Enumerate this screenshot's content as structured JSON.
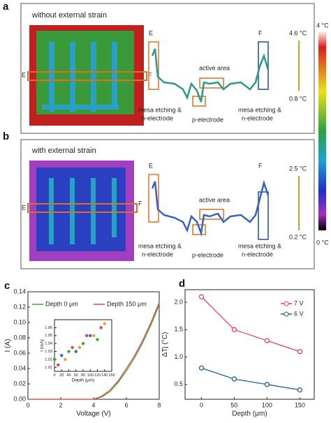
{
  "panels": [
    {
      "label": "a",
      "title": "without external strain",
      "image_e": "E",
      "image_f": "F",
      "profile_e": "E",
      "profile_f": "F",
      "active": "active area",
      "mesa_left": [
        "mesa etching &",
        "n-electrode"
      ],
      "p_electrode": "p-electrode",
      "mesa_right": [
        "mesa etching &",
        "n-electrode"
      ],
      "scale_max": "4.6 °C",
      "scale_min": "0.8 °C"
    },
    {
      "label": "b",
      "title": "with external strain",
      "image_e": "E",
      "image_f": "F",
      "profile_e": "E",
      "profile_f": "F",
      "active": "active area",
      "mesa_left": [
        "mesa etching &",
        "n-electrode"
      ],
      "p_electrode": "p-electrode",
      "mesa_right": [
        "mesa etching &",
        "n-electrode"
      ],
      "scale_max": "2.5 °C",
      "scale_min": "0.2 °C"
    }
  ],
  "colorbar": {
    "max": "4 °C",
    "min": "0 °C"
  },
  "chart_data": [
    {
      "type": "line",
      "label": "c",
      "x_label": "Voltage (V)",
      "y_label": "I (A)",
      "x": [
        0,
        1,
        2,
        3,
        4,
        4.5,
        5,
        5.5,
        6,
        6.5,
        7,
        7.5,
        8
      ],
      "series": [
        {
          "name": "Depth 0 μm",
          "color": "#3aa935",
          "values": [
            0,
            0,
            0,
            0,
            0,
            0.003,
            0.01,
            0.022,
            0.037,
            0.054,
            0.074,
            0.097,
            0.123
          ]
        },
        {
          "name": "Depth 150 μm",
          "color": "#e8434f",
          "values": [
            0,
            0,
            0,
            0,
            0,
            0.004,
            0.012,
            0.024,
            0.04,
            0.057,
            0.077,
            0.1,
            0.126
          ]
        }
      ],
      "xlim": [
        0,
        8
      ],
      "xticks": [
        0,
        2,
        4,
        6,
        8
      ],
      "ylim": [
        0,
        0.14
      ],
      "yticks": [
        {
          "value": 0,
          "label": "0.00"
        },
        {
          "value": 0.02,
          "label": "0.02"
        },
        {
          "value": 0.04,
          "label": "0.04"
        },
        {
          "value": 0.06,
          "label": "0.06"
        },
        {
          "value": 0.08,
          "label": "0.08"
        },
        {
          "value": 0.1,
          "label": "0.10"
        },
        {
          "value": 0.12,
          "label": "0.12"
        },
        {
          "value": 0.14,
          "label": "0.14"
        }
      ],
      "legend": "top-left"
    },
    {
      "type": "scatter",
      "x_label": "Depth (μm)",
      "y_label": "I (mA)",
      "x": [
        0,
        10,
        20,
        30,
        40,
        50,
        60,
        70,
        80,
        90,
        100,
        110,
        120,
        130,
        140
      ],
      "series": [
        {
          "values": [
            1.02,
            1.013,
            1.025,
            1.02,
            1.03,
            1.035,
            1.03,
            1.035,
            1.04,
            1.05,
            1.05,
            1.05,
            1.045,
            1.06,
            1.065
          ],
          "colors": [
            "#3aa935",
            "#e8434f",
            "#2b6cd6",
            "#f0a030",
            "#3aa935",
            "#e8434f",
            "#2b6cd6",
            "#f0a030",
            "#3aa935",
            "#e8434f",
            "#2b6cd6",
            "#f0a030",
            "#3aa935",
            "#e8434f",
            "#f0a030"
          ]
        }
      ],
      "xlim": [
        0,
        160
      ],
      "xticks": [
        0,
        20,
        40,
        60,
        80,
        100,
        120,
        140,
        160
      ],
      "ylim": [
        1.005,
        1.07
      ],
      "yticks": [
        1.01,
        1.02,
        1.03,
        1.04,
        1.05,
        1.06
      ]
    },
    {
      "type": "line",
      "label": "d",
      "x_label": "Depth (μm)",
      "y_label": "ΔTj (°C)",
      "x": [
        0,
        50,
        100,
        150
      ],
      "series": [
        {
          "name": "7 V",
          "color": "#e8434f",
          "values": [
            2.1,
            1.5,
            1.3,
            1.1
          ]
        },
        {
          "name": "6 V",
          "color": "#1f5f96",
          "values": [
            0.8,
            0.6,
            0.5,
            0.4
          ]
        }
      ],
      "xlim": [
        -25,
        172
      ],
      "xticks": [
        0,
        50,
        100,
        150
      ],
      "ylim": [
        0.23,
        2.23
      ],
      "yticks": [
        0.5,
        {
          "value": 1,
          "label": "1.0"
        },
        1.5,
        {
          "value": 2,
          "label": "2.0"
        }
      ],
      "markers": true,
      "legend": "top-right"
    }
  ]
}
